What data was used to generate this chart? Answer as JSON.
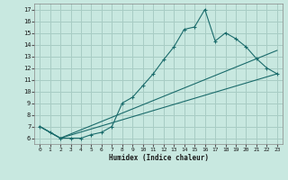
{
  "xlabel": "Humidex (Indice chaleur)",
  "xlim": [
    -0.5,
    23.5
  ],
  "ylim": [
    5.5,
    17.5
  ],
  "xticks": [
    0,
    1,
    2,
    3,
    4,
    5,
    6,
    7,
    8,
    9,
    10,
    11,
    12,
    13,
    14,
    15,
    16,
    17,
    18,
    19,
    20,
    21,
    22,
    23
  ],
  "yticks": [
    6,
    7,
    8,
    9,
    10,
    11,
    12,
    13,
    14,
    15,
    16,
    17
  ],
  "bg_color": "#c8e8e0",
  "grid_color": "#a8ccc4",
  "line_color": "#1a6b6b",
  "line1_x": [
    0,
    1,
    2,
    3,
    4,
    5,
    6,
    7,
    8,
    9,
    10,
    11,
    12,
    13,
    14,
    15,
    16,
    17,
    18,
    19,
    20,
    21,
    22,
    23
  ],
  "line1_y": [
    7.0,
    6.5,
    6.0,
    6.0,
    6.0,
    6.3,
    6.5,
    7.0,
    9.0,
    9.5,
    10.5,
    11.5,
    12.7,
    13.8,
    15.3,
    15.5,
    17.0,
    14.3,
    15.0,
    14.5,
    13.8,
    12.8,
    12.0,
    11.5
  ],
  "line2_x": [
    0,
    2,
    23
  ],
  "line2_y": [
    7.0,
    6.0,
    13.5
  ],
  "line3_x": [
    0,
    2,
    23
  ],
  "line3_y": [
    7.0,
    6.0,
    11.5
  ]
}
